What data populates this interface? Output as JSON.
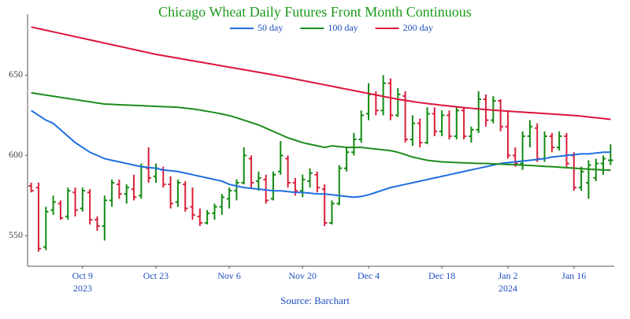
{
  "chart_data": {
    "type": "ohlc",
    "title": "Chicago Wheat Daily Futures Front Month Continuous",
    "source": "Source: Barchart",
    "categories": [
      null,
      null,
      null,
      null,
      null,
      null,
      null,
      "Oct 9",
      null,
      null,
      null,
      null,
      null,
      null,
      null,
      null,
      null,
      "Oct 23",
      null,
      null,
      null,
      null,
      null,
      null,
      null,
      null,
      null,
      "Nov 6",
      null,
      null,
      null,
      null,
      null,
      null,
      null,
      null,
      null,
      "Nov 20",
      null,
      null,
      null,
      null,
      null,
      null,
      null,
      null,
      "Dec 4",
      null,
      null,
      null,
      null,
      null,
      null,
      null,
      null,
      null,
      "Dec 18",
      null,
      null,
      null,
      null,
      null,
      null,
      null,
      null,
      "Jan 2",
      null,
      null,
      null,
      null,
      null,
      null,
      null,
      null,
      "Jan 16",
      null,
      null,
      null,
      null,
      null
    ],
    "category_years": [
      null,
      null,
      null,
      null,
      null,
      null,
      null,
      "2023",
      null,
      null,
      null,
      null,
      null,
      null,
      null,
      null,
      null,
      null,
      null,
      null,
      null,
      null,
      null,
      null,
      null,
      null,
      null,
      null,
      null,
      null,
      null,
      null,
      null,
      null,
      null,
      null,
      null,
      null,
      null,
      null,
      null,
      null,
      null,
      null,
      null,
      null,
      null,
      null,
      null,
      null,
      null,
      null,
      null,
      null,
      null,
      null,
      null,
      null,
      null,
      null,
      null,
      null,
      null,
      null,
      null,
      "2024",
      null,
      null,
      null,
      null,
      null,
      null,
      null,
      null,
      null,
      null,
      null,
      null,
      null,
      null
    ],
    "open": [
      581,
      580,
      543,
      566,
      570,
      562,
      577,
      567,
      577,
      560,
      556,
      572,
      582,
      576,
      579,
      575,
      592,
      587,
      591,
      582,
      571,
      582,
      568,
      562,
      558,
      564,
      568,
      573,
      578,
      583,
      598,
      584,
      585,
      573,
      590,
      598,
      583,
      578,
      584,
      588,
      579,
      558,
      570,
      592,
      602,
      610,
      626,
      638,
      628,
      645,
      625,
      637,
      610,
      620,
      608,
      626,
      615,
      625,
      612,
      628,
      612,
      616,
      635,
      622,
      634,
      618,
      600,
      595,
      612,
      617,
      598,
      612,
      605,
      612,
      600,
      580,
      583,
      586,
      595,
      597
    ],
    "high": [
      583,
      583,
      568,
      575,
      572,
      580,
      580,
      580,
      579,
      562,
      575,
      585,
      585,
      582,
      588,
      595,
      605,
      595,
      593,
      587,
      585,
      584,
      580,
      567,
      566,
      570,
      576,
      580,
      585,
      605,
      600,
      590,
      588,
      590,
      609,
      600,
      586,
      588,
      592,
      590,
      582,
      572,
      594,
      605,
      614,
      628,
      645,
      640,
      650,
      648,
      642,
      640,
      625,
      623,
      630,
      630,
      628,
      628,
      630,
      630,
      618,
      640,
      638,
      637,
      635,
      628,
      605,
      615,
      622,
      620,
      615,
      614,
      615,
      614,
      602,
      593,
      597,
      598,
      600,
      607
    ],
    "low": [
      577,
      540,
      541,
      563,
      560,
      560,
      562,
      565,
      557,
      553,
      547,
      568,
      573,
      570,
      572,
      573,
      583,
      583,
      580,
      567,
      568,
      565,
      560,
      556,
      557,
      560,
      563,
      567,
      572,
      582,
      580,
      578,
      570,
      572,
      588,
      580,
      575,
      574,
      580,
      577,
      556,
      557,
      569,
      590,
      600,
      608,
      622,
      625,
      625,
      622,
      624,
      608,
      606,
      605,
      607,
      612,
      612,
      610,
      610,
      610,
      608,
      614,
      618,
      620,
      615,
      598,
      593,
      591,
      605,
      596,
      596,
      602,
      603,
      593,
      578,
      578,
      573,
      584,
      588,
      594
    ],
    "close": [
      578,
      542,
      565,
      571,
      561,
      578,
      566,
      578,
      560,
      556,
      572,
      583,
      576,
      580,
      574,
      593,
      586,
      592,
      582,
      570,
      583,
      567,
      563,
      558,
      564,
      568,
      574,
      578,
      583,
      600,
      583,
      586,
      572,
      588,
      600,
      583,
      578,
      585,
      589,
      580,
      558,
      570,
      592,
      602,
      610,
      625,
      638,
      628,
      645,
      625,
      638,
      610,
      620,
      608,
      626,
      615,
      625,
      612,
      628,
      612,
      616,
      635,
      622,
      634,
      618,
      600,
      595,
      612,
      618,
      598,
      612,
      605,
      612,
      595,
      580,
      590,
      594,
      595,
      598,
      597
    ],
    "up_color": "#138a13",
    "down_color": "#d9203a",
    "series": [
      {
        "name": "50 day",
        "color": "#1e6fe0",
        "values": [
          628,
          625,
          622,
          620,
          616,
          612,
          608,
          605,
          602,
          600,
          598,
          597,
          596,
          595,
          594,
          593,
          592.5,
          592,
          591,
          590.5,
          590,
          589,
          588,
          587,
          586,
          585,
          584,
          582,
          581,
          580,
          579.5,
          579,
          578.5,
          578,
          578,
          577.5,
          577,
          577,
          576.5,
          576,
          576,
          575.5,
          575,
          574.5,
          574,
          574.5,
          575.5,
          577,
          578.5,
          580,
          581,
          582,
          583,
          584,
          585,
          586,
          587,
          588,
          589,
          590,
          591,
          592,
          593,
          594,
          595,
          595.5,
          596,
          596.5,
          597,
          597.5,
          598,
          599,
          599.5,
          600,
          600.5,
          601,
          601,
          601.5,
          602,
          602
        ]
      },
      {
        "name": "100 day",
        "color": "#1c8c1c",
        "values": [
          639,
          638.3,
          637.6,
          636.9,
          636.2,
          635.5,
          634.8,
          634.1,
          633.4,
          632.7,
          632,
          631.8,
          631.6,
          631.4,
          631.2,
          631,
          630.8,
          630.6,
          630.4,
          630.2,
          630,
          629.5,
          629,
          628.3,
          627.5,
          626.7,
          625.8,
          624.8,
          623.5,
          622,
          620.5,
          619,
          617,
          615,
          613,
          611,
          609.5,
          608,
          607,
          606,
          605,
          606,
          605.5,
          605,
          605,
          605,
          604.5,
          604,
          603.5,
          603,
          602,
          600.5,
          599,
          598,
          597,
          596.5,
          596,
          595.8,
          595.6,
          595.4,
          595.2,
          595,
          595,
          594.8,
          594.6,
          594.4,
          594.2,
          594,
          593.8,
          593.5,
          593.2,
          593,
          592.7,
          592.4,
          592.1,
          591.8,
          591.5,
          591.2,
          591,
          590.8
        ]
      },
      {
        "name": "200 day",
        "color": "#dc143c",
        "values": [
          680,
          679,
          678,
          677,
          676,
          675,
          674,
          673,
          672,
          671,
          670,
          669,
          668,
          667,
          666,
          665,
          664,
          663,
          662.2,
          661.4,
          660.6,
          659.8,
          659,
          658.2,
          657.4,
          656.6,
          655.8,
          655,
          654.2,
          653.4,
          652.6,
          651.8,
          651,
          650.2,
          649.4,
          648.5,
          647.6,
          646.7,
          645.8,
          644.9,
          644,
          643.1,
          642.2,
          641.3,
          640.4,
          639.5,
          638.6,
          637.7,
          636.8,
          635.9,
          635,
          634.3,
          633.6,
          632.9,
          632.3,
          631.8,
          631.3,
          630.8,
          630.3,
          629.8,
          629.4,
          629,
          628.6,
          628.2,
          627.9,
          627.6,
          627.3,
          627,
          626.7,
          626.4,
          626.1,
          625.8,
          625.5,
          625.2,
          624.9,
          624.5,
          624,
          623.5,
          623,
          622.5
        ]
      }
    ],
    "ylim": [
      531,
      688
    ],
    "yticks": [
      550,
      600,
      650
    ],
    "grid": false,
    "legend": "top",
    "title_color": "#1a9a1a",
    "source_color": "#1f4fbf"
  }
}
